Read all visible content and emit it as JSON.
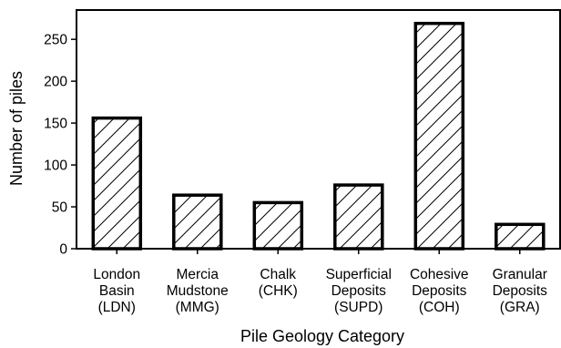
{
  "chart_data": {
    "type": "bar",
    "title": "",
    "xlabel": "Pile Geology Category",
    "ylabel": "Number of piles",
    "ylim": [
      0,
      285
    ],
    "yticks": [
      0,
      50,
      100,
      150,
      200,
      250
    ],
    "categories": [
      [
        "London",
        "Basin",
        "(LDN)"
      ],
      [
        "Mercia",
        "Mudstone",
        "(MMG)"
      ],
      [
        "Chalk",
        "(CHK)"
      ],
      [
        "Superficial",
        "Deposits",
        "(SUPD)"
      ],
      [
        "Cohesive",
        "Deposits",
        "(COH)"
      ],
      [
        "Granular",
        "Deposits",
        "(GRA)"
      ]
    ],
    "values": [
      156,
      64,
      55,
      76,
      269,
      29
    ],
    "bar_fill": "hatched diagonal",
    "bar_edge_color": "#000000",
    "grid": false,
    "legend": "none"
  }
}
